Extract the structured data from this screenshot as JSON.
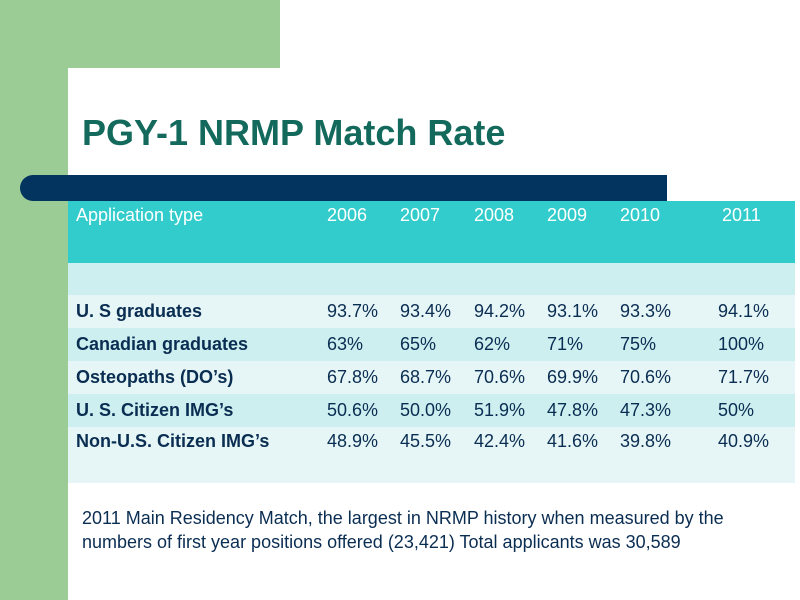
{
  "slide": {
    "title": "PGY-1 NRMP Match Rate",
    "table": {
      "header_label": "Application type",
      "years": [
        "2006",
        "2007",
        "2008",
        "2009",
        "2010",
        "2011"
      ],
      "rows": [
        {
          "label": "U. S graduates",
          "values": [
            "93.7%",
            "93.4%",
            "94.2%",
            "93.1%",
            "93.3%",
            " 94.1%"
          ]
        },
        {
          "label": "Canadian graduates",
          "values": [
            "63%",
            "65%",
            "62%",
            "71%",
            "75%",
            "100%"
          ]
        },
        {
          "label": "Osteopaths (DO’s)",
          "values": [
            "67.8%",
            "68.7%",
            "70.6%",
            "69.9%",
            "70.6%",
            " 71.7%"
          ]
        },
        {
          "label": "U. S. Citizen  IMG’s",
          "values": [
            "50.6%",
            "50.0%",
            "51.9%",
            "47.8%",
            "47.3%",
            " 50%"
          ]
        },
        {
          "label": "Non-U.S. Citizen  IMG’s",
          "values": [
            "48.9%",
            "45.5%",
            "42.4%",
            "41.6%",
            "39.8%",
            " 40.9%"
          ]
        }
      ]
    },
    "footnote": "2011 Main Residency Match, the largest in NRMP history when measured by the numbers of  first year positions offered (23,421) Total applicants was 30,589"
  },
  "colors": {
    "green_frame": "#9ccc96",
    "navy_bar": "#03335f",
    "title": "#136a5c",
    "header_teal": "#33cccc",
    "row_light": "#e6f6f6",
    "row_mid": "#cdeff0"
  }
}
